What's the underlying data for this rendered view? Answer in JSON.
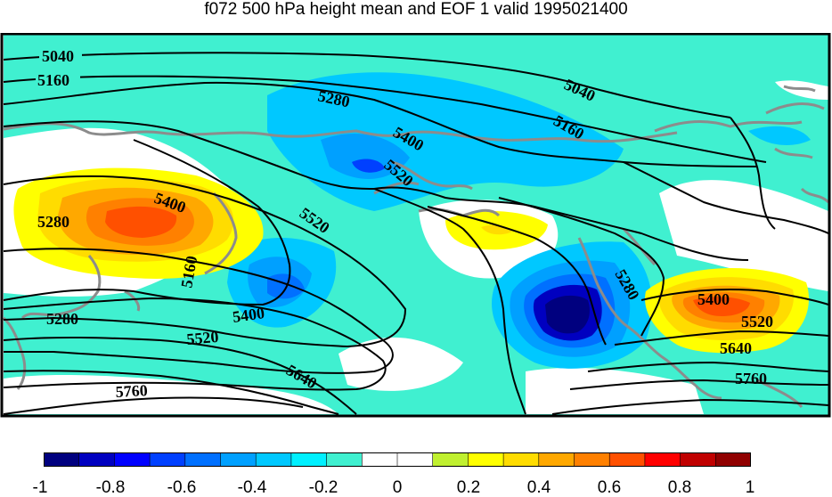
{
  "title": "f072 500 hPa height mean and EOF 1 valid 1995021400",
  "colors": {
    "frame": "#000000",
    "coast": "#8c8c8c",
    "contour": "#000000"
  },
  "colorbar": {
    "ticks": [
      "-1",
      "-0.8",
      "-0.6",
      "-0.4",
      "-0.2",
      "0",
      "0.2",
      "0.4",
      "0.6",
      "0.8",
      "1"
    ],
    "bins": [
      "#00007f",
      "#0000c0",
      "#0000ff",
      "#0040ff",
      "#0070ff",
      "#00a0ff",
      "#00c8ff",
      "#00f0ff",
      "#40f0d0",
      "#ffffff",
      "#ffffff",
      "#c0f030",
      "#ffff00",
      "#ffdc00",
      "#ffa800",
      "#ff8000",
      "#ff5000",
      "#ff0000",
      "#c00000",
      "#900000"
    ]
  },
  "contour_labels": [
    "5040",
    "5160",
    "5280",
    "5400",
    "5520",
    "5640",
    "5760"
  ]
}
